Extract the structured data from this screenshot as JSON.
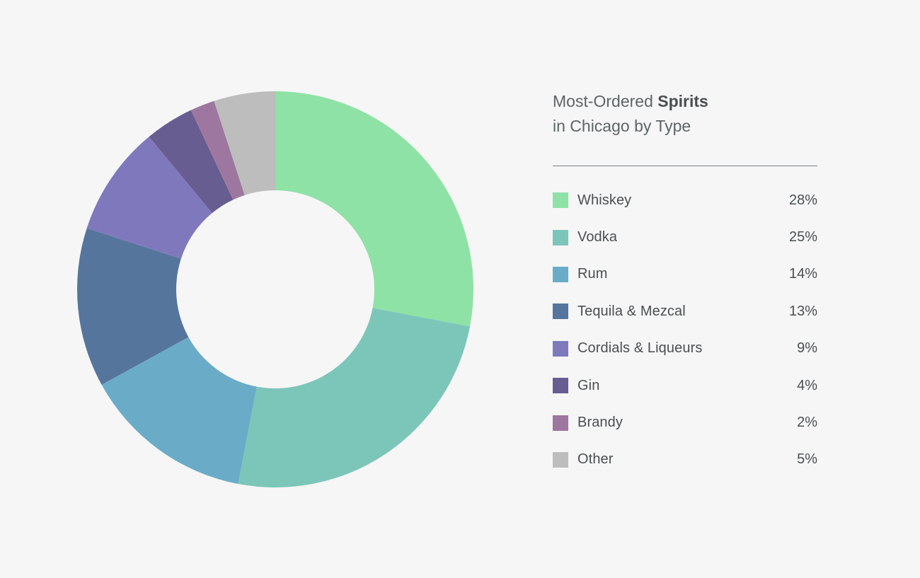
{
  "header": {
    "title_prefix": "Most-Ordered ",
    "title_bold": "Spirits",
    "title_line2": "in Chicago by Type"
  },
  "chart_data": {
    "type": "pie",
    "title": "Most-Ordered Spirits in Chicago by Type",
    "donut": true,
    "legend_position": "right",
    "categories": [
      "Whiskey",
      "Vodka",
      "Rum",
      "Tequila & Mezcal",
      "Cordials & Liqueurs",
      "Gin",
      "Brandy",
      "Other"
    ],
    "values": [
      28,
      25,
      14,
      13,
      9,
      4,
      2,
      5
    ],
    "value_labels": [
      "28%",
      "25%",
      "14%",
      "13%",
      "9%",
      "4%",
      "2%",
      "5%"
    ],
    "colors": [
      "#8fe2a6",
      "#7cc6b9",
      "#6aacc7",
      "#56759c",
      "#8078bd",
      "#675d91",
      "#9e77a0",
      "#bcbdbc"
    ]
  }
}
